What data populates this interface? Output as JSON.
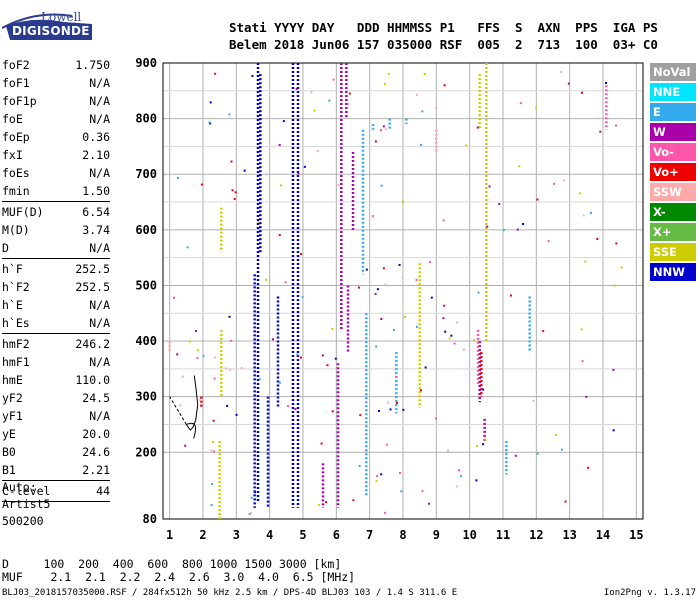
{
  "logo": {
    "line1": "Lowell",
    "line2": "DIGISONDE"
  },
  "header": {
    "line1": "Stati YYYY DAY   DDD HHMMSS P1   FFS  S  AXN  PPS  IGA PS",
    "line2": "Belem 2018 Jun06 157 035000 RSF  005  2  713  100  03+ C0"
  },
  "params": [
    {
      "name": "foF2",
      "value": "1.750"
    },
    {
      "name": "foF1",
      "value": "N/A"
    },
    {
      "name": "foF1p",
      "value": "N/A"
    },
    {
      "name": "foE",
      "value": "N/A"
    },
    {
      "name": "foEp",
      "value": "0.36"
    },
    {
      "name": "fxI",
      "value": "2.10"
    },
    {
      "name": "foEs",
      "value": "N/A"
    },
    {
      "name": "fmin",
      "value": "1.50"
    },
    {
      "sep": true
    },
    {
      "name": "MUF(D)",
      "value": "6.54"
    },
    {
      "name": "M(D)",
      "value": "3.74"
    },
    {
      "name": "D",
      "value": "N/A"
    },
    {
      "sep": true
    },
    {
      "name": "h`F",
      "value": "252.5"
    },
    {
      "name": "h`F2",
      "value": "252.5"
    },
    {
      "name": "h`E",
      "value": "N/A"
    },
    {
      "name": "h`Es",
      "value": "N/A"
    },
    {
      "sep": true
    },
    {
      "name": "hmF2",
      "value": "246.2"
    },
    {
      "name": "hmF1",
      "value": "N/A"
    },
    {
      "name": "hmE",
      "value": "110.0"
    },
    {
      "name": "yF2",
      "value": "24.5"
    },
    {
      "name": "yF1",
      "value": "N/A"
    },
    {
      "name": "yE",
      "value": "20.0"
    },
    {
      "name": "B0",
      "value": "24.6"
    },
    {
      "name": "B1",
      "value": "2.21"
    },
    {
      "sep": true
    },
    {
      "name": "C-level",
      "value": "44"
    },
    {
      "sep": true
    }
  ],
  "auto": {
    "line1": "Auto:",
    "line2": "Artist5",
    "line3": "500200"
  },
  "legend": [
    {
      "label": "NoVal",
      "color": "#a0a0a0"
    },
    {
      "label": "NNE",
      "color": "#00e5ff"
    },
    {
      "label": "E",
      "color": "#33aaee"
    },
    {
      "label": "W",
      "color": "#aa00aa"
    },
    {
      "label": "Vo-",
      "color": "#ff55aa"
    },
    {
      "label": "Vo+",
      "color": "#ee0000"
    },
    {
      "label": "SSW",
      "color": "#ffaaaa"
    },
    {
      "label": "X-",
      "color": "#008800"
    },
    {
      "label": "X+",
      "color": "#66bb44"
    },
    {
      "label": "SSE",
      "color": "#cccc00"
    },
    {
      "label": "NNW",
      "color": "#0000cc"
    }
  ],
  "bottom": {
    "d_row": "D     100  200  400  600  800 1000 1500 3000 [km]",
    "muf_row": "MUF    2.1  2.1  2.2  2.4  2.6  3.0  4.0  6.5 [MHz]"
  },
  "footer": "BLJ03_2018157035000.RSF / 284fx512h 50 kHz 2.5 km / DPS-4D BLJ03 103 / 1.4 S 311.6 E",
  "version": "Ion2Png v. 1.3.17",
  "chart_data": {
    "type": "scatter",
    "xlim": [
      0.8,
      15.2
    ],
    "ylim": [
      80,
      900
    ],
    "x_ticks": [
      1,
      2,
      3,
      4,
      5,
      6,
      7,
      8,
      9,
      10,
      11,
      12,
      13,
      14,
      15
    ],
    "y_ticks": [
      80,
      200,
      300,
      400,
      500,
      600,
      700,
      800,
      900
    ],
    "grid": true,
    "trace": {
      "x": [
        1.5,
        1.62,
        1.7,
        1.78,
        1.84,
        1.8,
        1.74
      ],
      "y": [
        250,
        240,
        245,
        258,
        285,
        310,
        338
      ]
    },
    "series": [
      {
        "name": "NNW",
        "color": "#0000cc",
        "segments": [
          {
            "x": 3.65,
            "y1": 110,
            "y2": 900
          },
          {
            "x": 3.72,
            "y1": 560,
            "y2": 880
          },
          {
            "x": 3.55,
            "y1": 100,
            "y2": 520
          },
          {
            "x": 3.95,
            "y1": 100,
            "y2": 300
          },
          {
            "x": 4.25,
            "y1": 280,
            "y2": 480
          },
          {
            "x": 4.7,
            "y1": 100,
            "y2": 900
          },
          {
            "x": 4.85,
            "y1": 100,
            "y2": 900
          }
        ]
      },
      {
        "name": "W",
        "color": "#aa00aa",
        "segments": [
          {
            "x": 6.05,
            "y1": 100,
            "y2": 360
          },
          {
            "x": 6.15,
            "y1": 420,
            "y2": 900
          },
          {
            "x": 6.3,
            "y1": 800,
            "y2": 900
          },
          {
            "x": 6.35,
            "y1": 380,
            "y2": 500
          },
          {
            "x": 10.3,
            "y1": 290,
            "y2": 400
          },
          {
            "x": 10.45,
            "y1": 220,
            "y2": 260
          },
          {
            "x": 5.6,
            "y1": 100,
            "y2": 180
          },
          {
            "x": 6.5,
            "y1": 600,
            "y2": 740
          }
        ]
      },
      {
        "name": "E",
        "color": "#33aaee",
        "segments": [
          {
            "x": 6.8,
            "y1": 520,
            "y2": 780
          },
          {
            "x": 6.9,
            "y1": 120,
            "y2": 450
          },
          {
            "x": 7.1,
            "y1": 780,
            "y2": 790
          },
          {
            "x": 7.6,
            "y1": 780,
            "y2": 800
          },
          {
            "x": 8.1,
            "y1": 790,
            "y2": 800
          },
          {
            "x": 11.8,
            "y1": 380,
            "y2": 480
          },
          {
            "x": 11.1,
            "y1": 160,
            "y2": 220
          },
          {
            "x": 7.8,
            "y1": 270,
            "y2": 380
          }
        ]
      },
      {
        "name": "SSE",
        "color": "#cccc00",
        "segments": [
          {
            "x": 10.5,
            "y1": 400,
            "y2": 900
          },
          {
            "x": 2.5,
            "y1": 80,
            "y2": 220
          },
          {
            "x": 2.55,
            "y1": 300,
            "y2": 420
          },
          {
            "x": 2.55,
            "y1": 560,
            "y2": 640
          },
          {
            "x": 8.5,
            "y1": 280,
            "y2": 540
          },
          {
            "x": 10.3,
            "y1": 780,
            "y2": 880
          }
        ]
      },
      {
        "name": "Vo+",
        "color": "#ee0000",
        "segments": [
          {
            "x": 1.95,
            "y1": 280,
            "y2": 300
          },
          {
            "x": 10.35,
            "y1": 300,
            "y2": 380
          }
        ]
      },
      {
        "name": "Vo-",
        "color": "#ff55aa",
        "segments": [
          {
            "x": 10.25,
            "y1": 320,
            "y2": 420
          },
          {
            "x": 14.1,
            "y1": 780,
            "y2": 860
          }
        ]
      },
      {
        "name": "SSW",
        "color": "#ffaaaa",
        "segments": [
          {
            "x": 1.0,
            "y1": 380,
            "y2": 400
          },
          {
            "x": 9.0,
            "y1": 740,
            "y2": 780
          }
        ]
      }
    ]
  }
}
